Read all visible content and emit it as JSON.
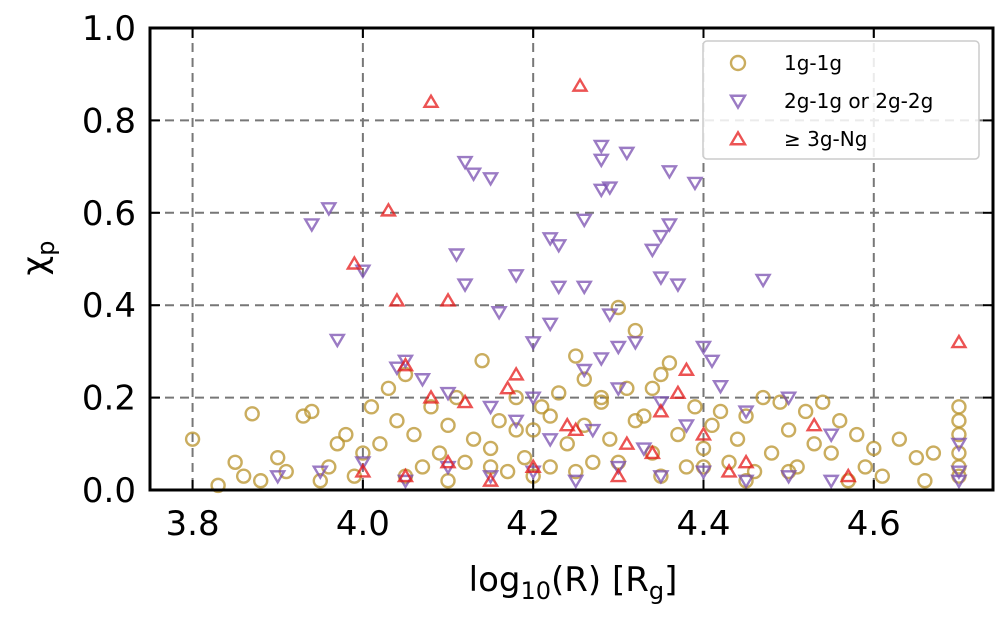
{
  "chart_data": {
    "type": "scatter",
    "xlabel": "log10(R) [Rg]",
    "ylabel": "χp",
    "xlim": [
      3.75,
      4.74
    ],
    "ylim": [
      0,
      1.0
    ],
    "xticks": [
      "3.8",
      "4.0",
      "4.2",
      "4.4",
      "4.6"
    ],
    "xtick_values": [
      3.8,
      4.0,
      4.2,
      4.4,
      4.6
    ],
    "yticks": [
      "0.0",
      "0.2",
      "0.4",
      "0.6",
      "0.8",
      "1.0"
    ],
    "ytick_values": [
      0.0,
      0.2,
      0.4,
      0.6,
      0.8,
      1.0
    ],
    "grid": true,
    "legend_position": "top-right",
    "series": [
      {
        "name": "1g-1g",
        "marker": "circle",
        "color": "#b8922a",
        "points": [
          [
            3.8,
            0.11
          ],
          [
            3.83,
            0.01
          ],
          [
            3.85,
            0.06
          ],
          [
            3.86,
            0.03
          ],
          [
            3.87,
            0.165
          ],
          [
            3.88,
            0.02
          ],
          [
            3.9,
            0.07
          ],
          [
            3.91,
            0.04
          ],
          [
            3.93,
            0.16
          ],
          [
            3.94,
            0.17
          ],
          [
            3.95,
            0.02
          ],
          [
            3.96,
            0.05
          ],
          [
            3.97,
            0.1
          ],
          [
            3.98,
            0.12
          ],
          [
            3.99,
            0.03
          ],
          [
            4.0,
            0.08
          ],
          [
            4.01,
            0.18
          ],
          [
            4.02,
            0.1
          ],
          [
            4.03,
            0.22
          ],
          [
            4.04,
            0.15
          ],
          [
            4.05,
            0.25
          ],
          [
            4.06,
            0.12
          ],
          [
            4.07,
            0.05
          ],
          [
            4.08,
            0.18
          ],
          [
            4.09,
            0.08
          ],
          [
            4.1,
            0.14
          ],
          [
            4.11,
            0.2
          ],
          [
            4.12,
            0.06
          ],
          [
            4.13,
            0.11
          ],
          [
            4.14,
            0.28
          ],
          [
            4.15,
            0.09
          ],
          [
            4.16,
            0.15
          ],
          [
            4.17,
            0.04
          ],
          [
            4.18,
            0.2
          ],
          [
            4.19,
            0.07
          ],
          [
            4.2,
            0.13
          ],
          [
            4.21,
            0.18
          ],
          [
            4.22,
            0.05
          ],
          [
            4.23,
            0.21
          ],
          [
            4.24,
            0.1
          ],
          [
            4.25,
            0.29
          ],
          [
            4.26,
            0.14
          ],
          [
            4.27,
            0.06
          ],
          [
            4.28,
            0.19
          ],
          [
            4.29,
            0.11
          ],
          [
            4.3,
            0.395
          ],
          [
            4.31,
            0.22
          ],
          [
            4.32,
            0.345
          ],
          [
            4.33,
            0.16
          ],
          [
            4.34,
            0.08
          ],
          [
            4.35,
            0.25
          ],
          [
            4.36,
            0.275
          ],
          [
            4.37,
            0.12
          ],
          [
            4.38,
            0.05
          ],
          [
            4.39,
            0.18
          ],
          [
            4.4,
            0.09
          ],
          [
            4.41,
            0.14
          ],
          [
            4.42,
            0.17
          ],
          [
            4.43,
            0.06
          ],
          [
            4.44,
            0.11
          ],
          [
            4.45,
            0.16
          ],
          [
            4.46,
            0.04
          ],
          [
            4.47,
            0.2
          ],
          [
            4.48,
            0.08
          ],
          [
            4.49,
            0.19
          ],
          [
            4.5,
            0.13
          ],
          [
            4.51,
            0.05
          ],
          [
            4.52,
            0.17
          ],
          [
            4.53,
            0.1
          ],
          [
            4.54,
            0.19
          ],
          [
            4.55,
            0.08
          ],
          [
            4.56,
            0.15
          ],
          [
            4.57,
            0.02
          ],
          [
            4.58,
            0.12
          ],
          [
            4.59,
            0.05
          ],
          [
            4.6,
            0.09
          ],
          [
            4.61,
            0.03
          ],
          [
            4.63,
            0.11
          ],
          [
            4.65,
            0.07
          ],
          [
            4.66,
            0.02
          ],
          [
            4.67,
            0.08
          ],
          [
            4.7,
            0.18
          ],
          [
            4.7,
            0.15
          ],
          [
            4.7,
            0.12
          ],
          [
            4.7,
            0.08
          ],
          [
            4.7,
            0.05
          ],
          [
            4.7,
            0.03
          ],
          [
            4.05,
            0.03
          ],
          [
            4.1,
            0.02
          ],
          [
            4.15,
            0.05
          ],
          [
            4.2,
            0.03
          ],
          [
            4.25,
            0.04
          ],
          [
            4.3,
            0.06
          ],
          [
            4.35,
            0.03
          ],
          [
            4.4,
            0.05
          ],
          [
            4.45,
            0.02
          ],
          [
            4.5,
            0.04
          ],
          [
            4.28,
            0.2
          ],
          [
            4.32,
            0.15
          ],
          [
            4.26,
            0.24
          ],
          [
            4.22,
            0.16
          ],
          [
            4.18,
            0.13
          ],
          [
            4.34,
            0.22
          ]
        ]
      },
      {
        "name": "2g-1g or 2g-2g",
        "marker": "triangle-down",
        "color": "#7a4fb0",
        "points": [
          [
            3.94,
            0.575
          ],
          [
            3.96,
            0.61
          ],
          [
            3.97,
            0.325
          ],
          [
            4.0,
            0.475
          ],
          [
            4.04,
            0.265
          ],
          [
            4.05,
            0.28
          ],
          [
            4.07,
            0.24
          ],
          [
            4.11,
            0.51
          ],
          [
            4.12,
            0.445
          ],
          [
            4.12,
            0.71
          ],
          [
            4.13,
            0.685
          ],
          [
            4.15,
            0.675
          ],
          [
            4.16,
            0.385
          ],
          [
            4.18,
            0.465
          ],
          [
            4.2,
            0.32
          ],
          [
            4.22,
            0.545
          ],
          [
            4.22,
            0.36
          ],
          [
            4.23,
            0.53
          ],
          [
            4.23,
            0.44
          ],
          [
            4.26,
            0.44
          ],
          [
            4.26,
            0.585
          ],
          [
            4.28,
            0.745
          ],
          [
            4.28,
            0.715
          ],
          [
            4.28,
            0.65
          ],
          [
            4.29,
            0.655
          ],
          [
            4.29,
            0.38
          ],
          [
            4.31,
            0.73
          ],
          [
            4.3,
            0.31
          ],
          [
            4.32,
            0.32
          ],
          [
            4.34,
            0.52
          ],
          [
            4.35,
            0.55
          ],
          [
            4.35,
            0.46
          ],
          [
            4.36,
            0.575
          ],
          [
            4.36,
            0.69
          ],
          [
            4.37,
            0.445
          ],
          [
            4.39,
            0.665
          ],
          [
            4.4,
            0.31
          ],
          [
            4.41,
            0.28
          ],
          [
            4.42,
            0.225
          ],
          [
            4.47,
            0.455
          ],
          [
            4.28,
            0.285
          ],
          [
            4.26,
            0.26
          ],
          [
            4.3,
            0.22
          ],
          [
            4.2,
            0.2
          ],
          [
            4.1,
            0.21
          ],
          [
            4.15,
            0.18
          ],
          [
            4.35,
            0.19
          ],
          [
            4.45,
            0.17
          ],
          [
            4.5,
            0.2
          ],
          [
            4.55,
            0.12
          ],
          [
            3.9,
            0.03
          ],
          [
            3.95,
            0.04
          ],
          [
            4.0,
            0.06
          ],
          [
            4.05,
            0.02
          ],
          [
            4.1,
            0.05
          ],
          [
            4.15,
            0.03
          ],
          [
            4.2,
            0.04
          ],
          [
            4.25,
            0.02
          ],
          [
            4.3,
            0.05
          ],
          [
            4.35,
            0.03
          ],
          [
            4.4,
            0.04
          ],
          [
            4.45,
            0.02
          ],
          [
            4.5,
            0.03
          ],
          [
            4.55,
            0.02
          ],
          [
            4.7,
            0.1
          ],
          [
            4.7,
            0.04
          ],
          [
            4.7,
            0.02
          ],
          [
            4.18,
            0.15
          ],
          [
            4.22,
            0.11
          ],
          [
            4.27,
            0.13
          ],
          [
            4.33,
            0.09
          ],
          [
            4.38,
            0.14
          ]
        ]
      },
      {
        "name": "≥ 3g-Ng",
        "marker": "triangle-up",
        "color": "#e61a1a",
        "points": [
          [
            4.08,
            0.84
          ],
          [
            4.255,
            0.875
          ],
          [
            4.03,
            0.605
          ],
          [
            3.99,
            0.49
          ],
          [
            4.04,
            0.41
          ],
          [
            4.1,
            0.41
          ],
          [
            4.05,
            0.27
          ],
          [
            4.38,
            0.26
          ],
          [
            4.08,
            0.2
          ],
          [
            4.17,
            0.22
          ],
          [
            4.18,
            0.25
          ],
          [
            4.12,
            0.19
          ],
          [
            4.35,
            0.17
          ],
          [
            4.37,
            0.21
          ],
          [
            4.7,
            0.32
          ],
          [
            4.24,
            0.14
          ],
          [
            4.25,
            0.13
          ],
          [
            4.31,
            0.1
          ],
          [
            4.4,
            0.12
          ],
          [
            4.43,
            0.04
          ],
          [
            4.53,
            0.14
          ],
          [
            4.0,
            0.04
          ],
          [
            4.05,
            0.03
          ],
          [
            4.1,
            0.06
          ],
          [
            4.15,
            0.02
          ],
          [
            4.2,
            0.05
          ],
          [
            4.3,
            0.03
          ],
          [
            4.34,
            0.08
          ],
          [
            4.45,
            0.06
          ],
          [
            4.57,
            0.03
          ]
        ]
      }
    ]
  }
}
